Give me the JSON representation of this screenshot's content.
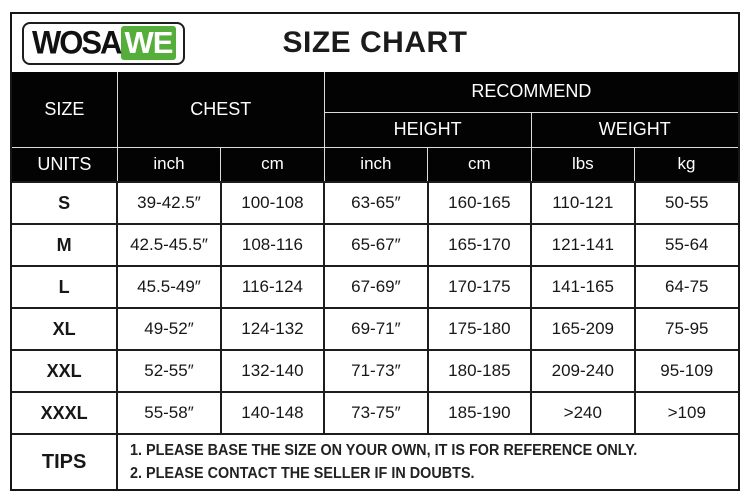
{
  "page": {
    "title": "SIZE CHART"
  },
  "logo": {
    "part1": "WOSA",
    "part2": "WE",
    "green": "#55ae3a"
  },
  "table": {
    "header": {
      "size": "SIZE",
      "chest": "CHEST",
      "recommend": "RECOMMEND",
      "height": "HEIGHT",
      "weight": "WEIGHT",
      "units": "UNITS",
      "unit_labels": [
        "inch",
        "cm",
        "inch",
        "cm",
        "lbs",
        "kg"
      ]
    },
    "rows": [
      {
        "size": "S",
        "chest_inch": "39-42.5″",
        "chest_cm": "100-108",
        "height_inch": "63-65″",
        "height_cm": "160-165",
        "weight_lbs": "110-121",
        "weight_kg": "50-55"
      },
      {
        "size": "M",
        "chest_inch": "42.5-45.5″",
        "chest_cm": "108-116",
        "height_inch": "65-67″",
        "height_cm": "165-170",
        "weight_lbs": "121-141",
        "weight_kg": "55-64"
      },
      {
        "size": "L",
        "chest_inch": "45.5-49″",
        "chest_cm": "116-124",
        "height_inch": "67-69″",
        "height_cm": "170-175",
        "weight_lbs": "141-165",
        "weight_kg": "64-75"
      },
      {
        "size": "XL",
        "chest_inch": "49-52″",
        "chest_cm": "124-132",
        "height_inch": "69-71″",
        "height_cm": "175-180",
        "weight_lbs": "165-209",
        "weight_kg": "75-95"
      },
      {
        "size": "XXL",
        "chest_inch": "52-55″",
        "chest_cm": "132-140",
        "height_inch": "71-73″",
        "height_cm": "180-185",
        "weight_lbs": "209-240",
        "weight_kg": "95-109"
      },
      {
        "size": "XXXL",
        "chest_inch": "55-58″",
        "chest_cm": "140-148",
        "height_inch": "73-75″",
        "height_cm": "185-190",
        "weight_lbs": ">240",
        "weight_kg": ">109"
      }
    ],
    "tips": {
      "label": "TIPS",
      "lines": [
        "1. PLEASE BASE THE SIZE ON YOUR OWN, IT IS FOR REFERENCE ONLY.",
        "2. PLEASE CONTACT THE SELLER IF IN DOUBTS."
      ]
    }
  },
  "chart_data": {
    "type": "table",
    "title": "SIZE CHART",
    "columns": [
      "SIZE",
      "CHEST inch",
      "CHEST cm",
      "RECOMMEND HEIGHT inch",
      "RECOMMEND HEIGHT cm",
      "RECOMMEND WEIGHT lbs",
      "RECOMMEND WEIGHT kg"
    ],
    "rows": [
      [
        "S",
        "39-42.5″",
        "100-108",
        "63-65″",
        "160-165",
        "110-121",
        "50-55"
      ],
      [
        "M",
        "42.5-45.5″",
        "108-116",
        "65-67″",
        "165-170",
        "121-141",
        "55-64"
      ],
      [
        "L",
        "45.5-49″",
        "116-124",
        "67-69″",
        "170-175",
        "141-165",
        "64-75"
      ],
      [
        "XL",
        "49-52″",
        "124-132",
        "69-71″",
        "175-180",
        "165-209",
        "75-95"
      ],
      [
        "XXL",
        "52-55″",
        "132-140",
        "71-73″",
        "180-185",
        "209-240",
        "95-109"
      ],
      [
        "XXXL",
        "55-58″",
        "140-148",
        "73-75″",
        "185-190",
        ">240",
        ">109"
      ]
    ]
  }
}
